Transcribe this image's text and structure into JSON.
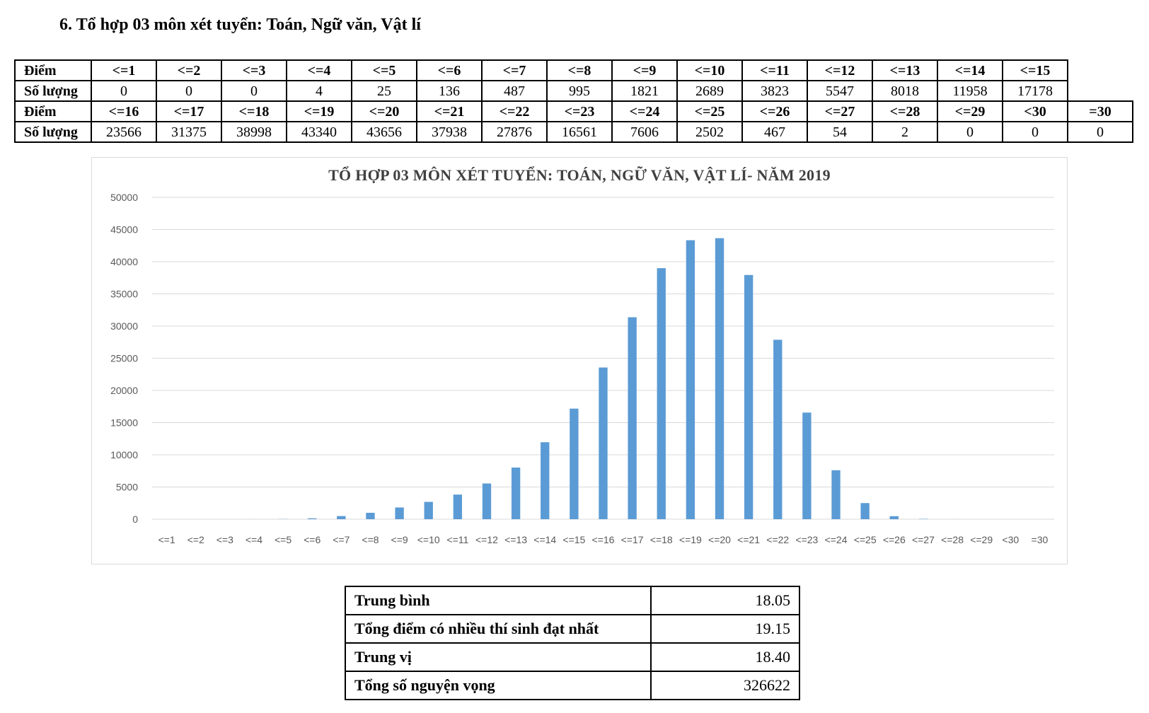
{
  "heading": "6. Tổ hợp 03 môn xét tuyển: Toán, Ngữ văn, Vật lí",
  "table": {
    "row_label_score": "Điểm",
    "row_label_count": "Số lượng",
    "part1": {
      "scores": [
        "<=1",
        "<=2",
        "<=3",
        "<=4",
        "<=5",
        "<=6",
        "<=7",
        "<=8",
        "<=9",
        "<=10",
        "<=11",
        "<=12",
        "<=13",
        "<=14",
        "<=15"
      ],
      "counts": [
        "0",
        "0",
        "0",
        "4",
        "25",
        "136",
        "487",
        "995",
        "1821",
        "2689",
        "3823",
        "5547",
        "8018",
        "11958",
        "17178"
      ]
    },
    "part2": {
      "scores": [
        "<=16",
        "<=17",
        "<=18",
        "<=19",
        "<=20",
        "<=21",
        "<=22",
        "<=23",
        "<=24",
        "<=25",
        "<=26",
        "<=27",
        "<=28",
        "<=29",
        "<30",
        "=30"
      ],
      "counts": [
        "23566",
        "31375",
        "38998",
        "43340",
        "43656",
        "37938",
        "27876",
        "16561",
        "7606",
        "2502",
        "467",
        "54",
        "2",
        "0",
        "0",
        "0"
      ]
    }
  },
  "chart_data": {
    "type": "bar",
    "title": "TỔ HỢP 03 MÔN XÉT TUYỂN: TOÁN, NGỮ VĂN, VẬT LÍ- NĂM 2019",
    "xlabel": "",
    "ylabel": "",
    "categories": [
      "<=1",
      "<=2",
      "<=3",
      "<=4",
      "<=5",
      "<=6",
      "<=7",
      "<=8",
      "<=9",
      "<=10",
      "<=11",
      "<=12",
      "<=13",
      "<=14",
      "<=15",
      "<=16",
      "<=17",
      "<=18",
      "<=19",
      "<=20",
      "<=21",
      "<=22",
      "<=23",
      "<=24",
      "<=25",
      "<=26",
      "<=27",
      "<=28",
      "<=29",
      "<30",
      "=30"
    ],
    "values": [
      0,
      0,
      0,
      4,
      25,
      136,
      487,
      995,
      1821,
      2689,
      3823,
      5547,
      8018,
      11958,
      17178,
      23566,
      31375,
      38998,
      43340,
      43656,
      37938,
      27876,
      16561,
      7606,
      2502,
      467,
      54,
      2,
      0,
      0,
      0
    ],
    "ylim": [
      0,
      50000
    ],
    "yticks": [
      0,
      5000,
      10000,
      15000,
      20000,
      25000,
      30000,
      35000,
      40000,
      45000,
      50000
    ],
    "grid": true,
    "bar_color": "#5b9bd5",
    "legend": "none"
  },
  "stats": [
    {
      "label": "Trung bình",
      "value": "18.05"
    },
    {
      "label": "Tổng điểm có nhiều thí sinh đạt nhất",
      "value": "19.15"
    },
    {
      "label": "Trung vị",
      "value": "18.40"
    },
    {
      "label": "Tổng số nguyện vọng",
      "value": "326622"
    }
  ]
}
